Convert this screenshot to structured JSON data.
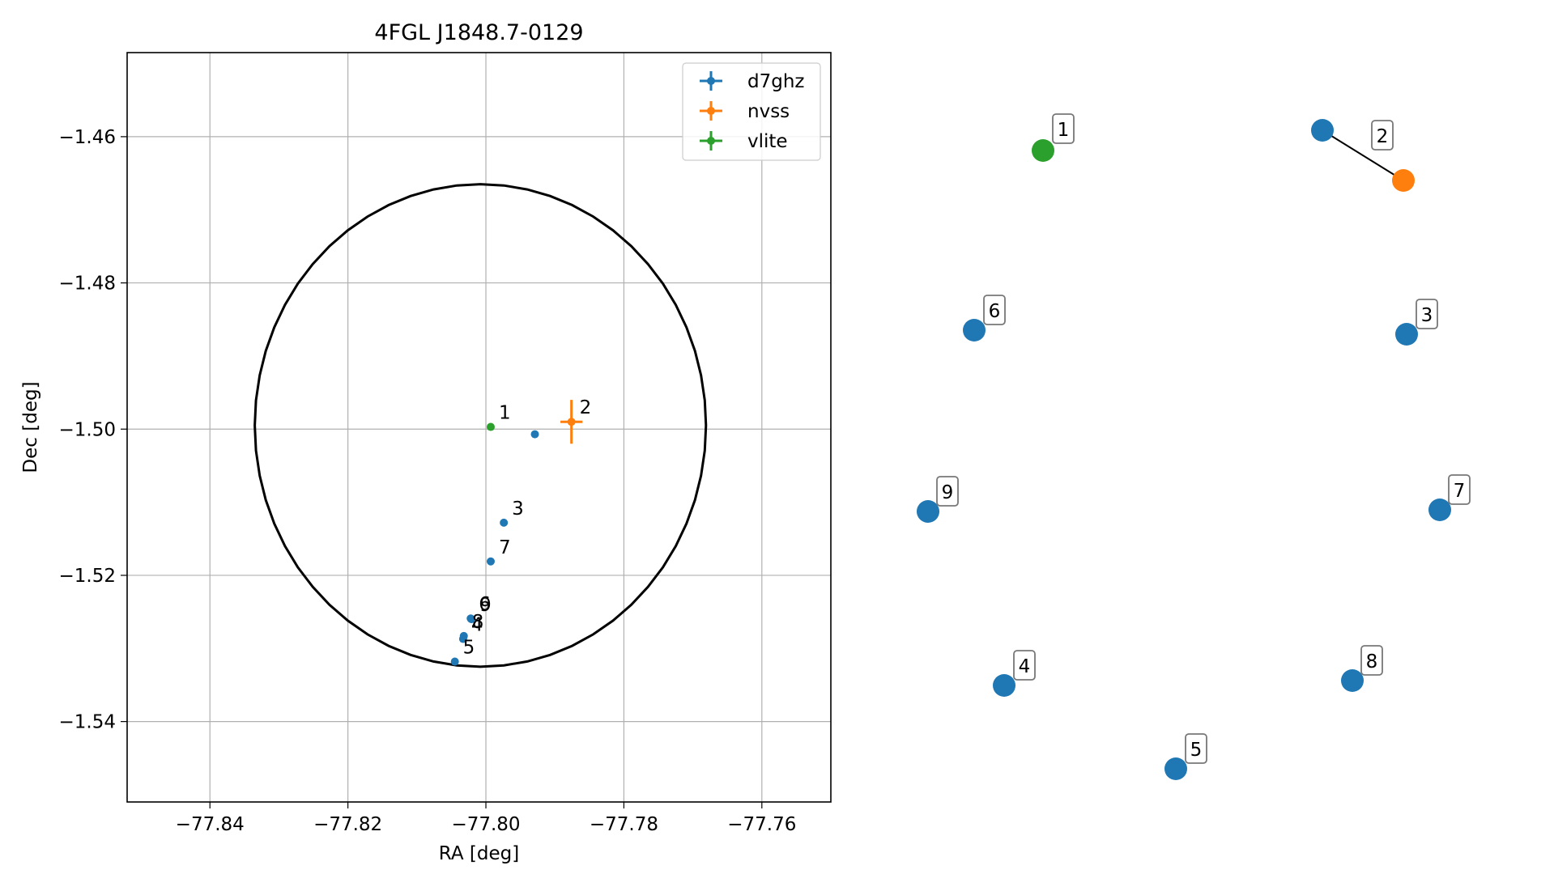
{
  "chart_data": [
    {
      "type": "scatter",
      "title": "4FGL J1848.7-0129",
      "xlabel": "RA [deg]",
      "ylabel": "Dec [deg]",
      "xlim": [
        -77.852,
        -77.75
      ],
      "ylim": [
        -1.551,
        -1.4485
      ],
      "x_ticks": [
        -77.84,
        -77.82,
        -77.8,
        -77.78,
        -77.76
      ],
      "x_tick_labels": [
        "−77.84",
        "−77.82",
        "−77.80",
        "−77.78",
        "−77.76"
      ],
      "y_ticks": [
        -1.46,
        -1.48,
        -1.5,
        -1.52,
        -1.54
      ],
      "y_tick_labels": [
        "−1.46",
        "−1.48",
        "−1.50",
        "−1.52",
        "−1.54"
      ],
      "grid": true,
      "legend_position": "top-right",
      "legend": [
        {
          "label": "d7ghz",
          "color": "#1f77b4"
        },
        {
          "label": "nvss",
          "color": "#ff7f0e"
        },
        {
          "label": "vlite",
          "color": "#2ca02c"
        }
      ],
      "ellipse": {
        "center_ra": -77.8008,
        "center_dec": -1.4995,
        "semi_ra": 0.0327,
        "semi_dec": 0.033,
        "color": "#000000"
      },
      "series": [
        {
          "name": "d7ghz",
          "color": "#1f77b4",
          "points": [
            {
              "id": "",
              "ra": -77.7929,
              "dec": -1.5007
            },
            {
              "id": "3",
              "ra": -77.7974,
              "dec": -1.5128
            },
            {
              "id": "7",
              "ra": -77.7993,
              "dec": -1.5181
            },
            {
              "id": "6",
              "ra": -77.8022,
              "dec": -1.5259
            },
            {
              "id": "9",
              "ra": -77.8021,
              "dec": -1.526
            },
            {
              "id": "8",
              "ra": -77.8032,
              "dec": -1.5283
            },
            {
              "id": "4",
              "ra": -77.8033,
              "dec": -1.5287
            },
            {
              "id": "5",
              "ra": -77.8045,
              "dec": -1.5318
            }
          ]
        },
        {
          "name": "nvss",
          "color": "#ff7f0e",
          "points": [
            {
              "id": "2",
              "ra": -77.7876,
              "dec": -1.499,
              "xerr": 0.0016,
              "yerr": 0.003
            }
          ]
        },
        {
          "name": "vlite",
          "color": "#2ca02c",
          "points": [
            {
              "id": "1",
              "ra": -77.7993,
              "dec": -1.4997
            }
          ]
        }
      ]
    },
    {
      "type": "scatter",
      "title": "",
      "labels": [
        {
          "id": "1",
          "color": "#2ca02c"
        },
        {
          "id": "2",
          "color": "#ff7f0e"
        },
        {
          "id": "",
          "color": "#1f77b4"
        },
        {
          "id": "3",
          "color": "#1f77b4"
        },
        {
          "id": "4",
          "color": "#1f77b4"
        },
        {
          "id": "5",
          "color": "#1f77b4"
        },
        {
          "id": "6",
          "color": "#1f77b4"
        },
        {
          "id": "7",
          "color": "#1f77b4"
        },
        {
          "id": "8",
          "color": "#1f77b4"
        },
        {
          "id": "9",
          "color": "#1f77b4"
        }
      ]
    }
  ]
}
